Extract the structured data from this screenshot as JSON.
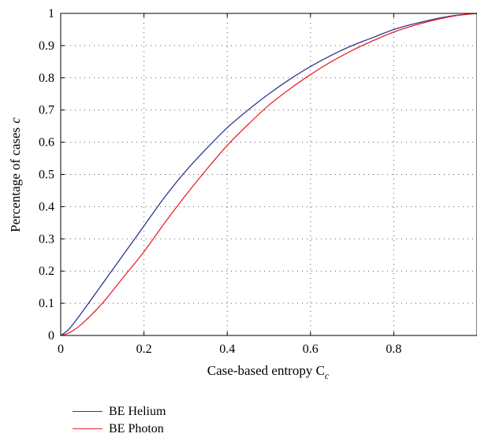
{
  "chart_data": {
    "type": "line",
    "xlabel_main": "Case-based entropy C",
    "xlabel_sub": "c",
    "ylabel_main": "Percentage of cases",
    "ylabel_var": "c",
    "xlim": [
      0,
      1
    ],
    "ylim": [
      0,
      1
    ],
    "x_ticks": [
      0,
      0.2,
      0.4,
      0.6,
      0.8
    ],
    "y_ticks": [
      0,
      0.1,
      0.2,
      0.3,
      0.4,
      0.5,
      0.6,
      0.7,
      0.8,
      0.9,
      1
    ],
    "x_tick_labels": [
      "0",
      "0.2",
      "0.4",
      "0.6",
      "0.8"
    ],
    "y_tick_labels": [
      "0",
      "0.1",
      "0.2",
      "0.3",
      "0.4",
      "0.5",
      "0.6",
      "0.7",
      "0.8",
      "0.9",
      "1"
    ],
    "grid": true,
    "legend_position": "bottom-left, below chart",
    "series": [
      {
        "name": "BE Helium",
        "color": "#2b3a8f",
        "x": [
          0,
          0.02,
          0.05,
          0.1,
          0.15,
          0.2,
          0.25,
          0.3,
          0.35,
          0.4,
          0.45,
          0.5,
          0.55,
          0.6,
          0.65,
          0.7,
          0.75,
          0.8,
          0.85,
          0.9,
          0.95,
          1.0
        ],
        "y": [
          0,
          0.02,
          0.07,
          0.16,
          0.25,
          0.34,
          0.43,
          0.51,
          0.58,
          0.645,
          0.7,
          0.75,
          0.795,
          0.835,
          0.87,
          0.9,
          0.925,
          0.95,
          0.968,
          0.983,
          0.994,
          1.0
        ]
      },
      {
        "name": "BE Photon",
        "color": "#e8232a",
        "x": [
          0,
          0.02,
          0.05,
          0.1,
          0.15,
          0.2,
          0.25,
          0.3,
          0.35,
          0.4,
          0.45,
          0.5,
          0.55,
          0.6,
          0.65,
          0.7,
          0.75,
          0.8,
          0.85,
          0.9,
          0.95,
          1.0
        ],
        "y": [
          0,
          0.008,
          0.035,
          0.1,
          0.18,
          0.26,
          0.35,
          0.435,
          0.515,
          0.59,
          0.655,
          0.715,
          0.765,
          0.81,
          0.85,
          0.885,
          0.915,
          0.942,
          0.963,
          0.98,
          0.993,
          1.0
        ]
      }
    ]
  }
}
